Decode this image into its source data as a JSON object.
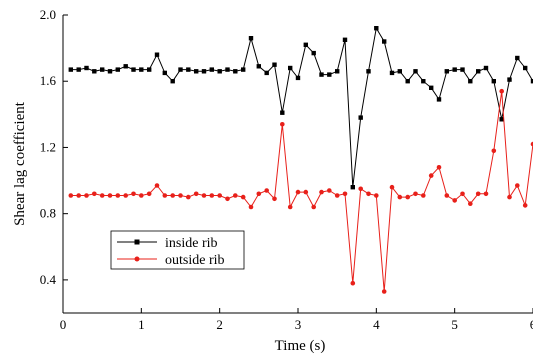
{
  "chart_data": {
    "type": "line",
    "xlabel": "Time (s)",
    "ylabel": "Shear lag coefficient",
    "xlim": [
      0,
      6
    ],
    "ylim": [
      0.2,
      2.0
    ],
    "xticks": [
      0,
      1,
      2,
      3,
      4,
      5,
      6
    ],
    "yticks": [
      0.4,
      0.8,
      1.2,
      1.6,
      2.0
    ],
    "xtick_labels": [
      "0",
      "1",
      "2",
      "3",
      "4",
      "5",
      "6"
    ],
    "ytick_labels": [
      "0.4",
      "0.8",
      "1.2",
      "1.6",
      "2.0"
    ],
    "grid": false,
    "legend_position": "lower-left",
    "series": [
      {
        "name": "inside rib",
        "color": "#000000",
        "marker": "square",
        "x": [
          0.1,
          0.2,
          0.3,
          0.4,
          0.5,
          0.6,
          0.7,
          0.8,
          0.9,
          1.0,
          1.1,
          1.2,
          1.3,
          1.4,
          1.5,
          1.6,
          1.7,
          1.8,
          1.9,
          2.0,
          2.1,
          2.2,
          2.3,
          2.4,
          2.5,
          2.6,
          2.7,
          2.8,
          2.9,
          3.0,
          3.1,
          3.2,
          3.3,
          3.4,
          3.5,
          3.6,
          3.7,
          3.8,
          3.9,
          4.0,
          4.1,
          4.2,
          4.3,
          4.4,
          4.5,
          4.6,
          4.7,
          4.8,
          4.9,
          5.0,
          5.1,
          5.2,
          5.3,
          5.4,
          5.5,
          5.6,
          5.7,
          5.8,
          5.9,
          6.0
        ],
        "y": [
          1.67,
          1.67,
          1.68,
          1.66,
          1.67,
          1.66,
          1.67,
          1.69,
          1.67,
          1.67,
          1.67,
          1.76,
          1.65,
          1.6,
          1.67,
          1.67,
          1.66,
          1.66,
          1.67,
          1.66,
          1.67,
          1.66,
          1.67,
          1.86,
          1.69,
          1.65,
          1.7,
          1.41,
          1.68,
          1.62,
          1.82,
          1.77,
          1.64,
          1.64,
          1.66,
          1.85,
          0.96,
          1.38,
          1.66,
          1.92,
          1.84,
          1.65,
          1.66,
          1.6,
          1.66,
          1.6,
          1.56,
          1.49,
          1.66,
          1.67,
          1.67,
          1.6,
          1.66,
          1.68,
          1.6,
          1.37,
          1.61,
          1.74,
          1.68,
          1.6
        ]
      },
      {
        "name": "outside rib",
        "color": "#e8201a",
        "marker": "circle",
        "x": [
          0.1,
          0.2,
          0.3,
          0.4,
          0.5,
          0.6,
          0.7,
          0.8,
          0.9,
          1.0,
          1.1,
          1.2,
          1.3,
          1.4,
          1.5,
          1.6,
          1.7,
          1.8,
          1.9,
          2.0,
          2.1,
          2.2,
          2.3,
          2.4,
          2.5,
          2.6,
          2.7,
          2.8,
          2.9,
          3.0,
          3.1,
          3.2,
          3.3,
          3.4,
          3.5,
          3.6,
          3.7,
          3.8,
          3.9,
          4.0,
          4.1,
          4.2,
          4.3,
          4.4,
          4.5,
          4.6,
          4.7,
          4.8,
          4.9,
          5.0,
          5.1,
          5.2,
          5.3,
          5.4,
          5.5,
          5.6,
          5.7,
          5.8,
          5.9,
          6.0
        ],
        "y": [
          0.91,
          0.91,
          0.91,
          0.92,
          0.91,
          0.91,
          0.91,
          0.91,
          0.92,
          0.91,
          0.92,
          0.97,
          0.91,
          0.91,
          0.91,
          0.9,
          0.92,
          0.91,
          0.91,
          0.91,
          0.89,
          0.91,
          0.9,
          0.84,
          0.92,
          0.94,
          0.89,
          1.34,
          0.84,
          0.93,
          0.93,
          0.84,
          0.93,
          0.94,
          0.91,
          0.92,
          0.38,
          0.95,
          0.92,
          0.91,
          0.33,
          0.96,
          0.9,
          0.9,
          0.92,
          0.91,
          1.03,
          1.08,
          0.91,
          0.88,
          0.92,
          0.86,
          0.92,
          0.92,
          1.18,
          1.54,
          0.9,
          0.97,
          0.85,
          1.22
        ]
      }
    ]
  }
}
